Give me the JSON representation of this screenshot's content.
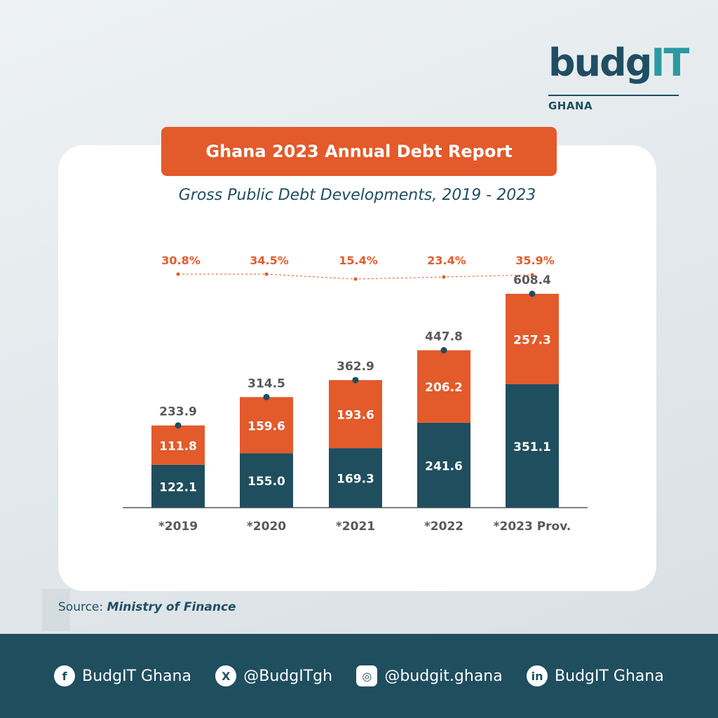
{
  "brand": {
    "name_main": "budg",
    "name_accent": "IT",
    "country": "GHANA"
  },
  "banner_title": "Ghana 2023 Annual Debt Report",
  "subtitle": "Gross Public Debt Developments, 2019 - 2023",
  "source": {
    "label": "Source:",
    "value": "Ministry of Finance"
  },
  "colors": {
    "domestic": "#1f4e5f",
    "external": "#e35a2b",
    "text_dark": "#58595b",
    "accent": "#e35a2b"
  },
  "chart_data": {
    "type": "bar",
    "stacked": true,
    "categories": [
      "*2019",
      "*2020",
      "*2021",
      "*2022",
      "*2023 Prov."
    ],
    "series": [
      {
        "values": [
          122.1,
          155.0,
          169.3,
          241.6,
          351.1
        ]
      },
      {
        "values": [
          111.8,
          159.6,
          193.6,
          206.2,
          257.3
        ]
      }
    ],
    "totals": [
      233.9,
      314.5,
      362.9,
      447.8,
      608.4
    ],
    "growth_rates": [
      "30.8%",
      "34.5%",
      "15.4%",
      "23.4%",
      "35.9%"
    ],
    "value_labels_bottom": [
      "122.1",
      "155.0",
      "169.3",
      "241.6",
      "351.1"
    ],
    "value_labels_top": [
      "111.8",
      "159.6",
      "193.6",
      "206.2",
      "257.3"
    ],
    "total_labels": [
      "233.9",
      "314.5",
      "362.9",
      "447.8",
      "608.4"
    ],
    "ylim": [
      0,
      608.4
    ],
    "grid": false,
    "legend": "none"
  },
  "footer": [
    {
      "icon": "facebook-icon",
      "glyph": "f",
      "text": "BudgIT Ghana"
    },
    {
      "icon": "x-icon",
      "glyph": "X",
      "text": "@BudgITgh"
    },
    {
      "icon": "instagram-icon",
      "glyph": "◎",
      "text": "@budgit.ghana"
    },
    {
      "icon": "linkedin-icon",
      "glyph": "in",
      "text": "BudgIT Ghana"
    }
  ]
}
